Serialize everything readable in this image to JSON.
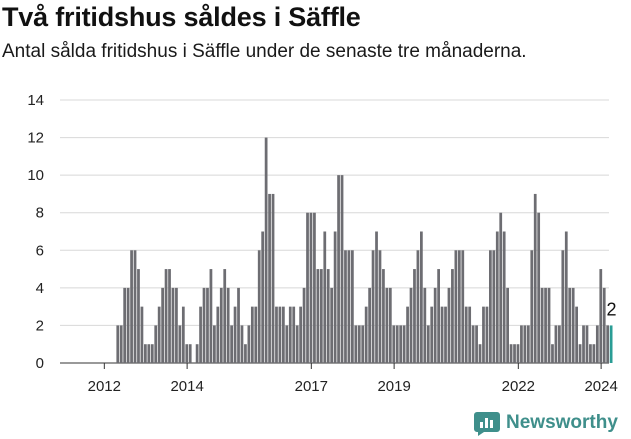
{
  "header": {
    "title": "Två fritidshus såldes i Säffle",
    "subtitle": "Antal sålda fritidshus i Säffle under de senaste tre månaderna."
  },
  "brand": {
    "name": "Newsworthy",
    "icon": "newsworthy-chart-icon"
  },
  "colors": {
    "bar": "#6d6d72",
    "highlight": "#2a9d95",
    "grid": "#d8d8d8",
    "brand": "#3f8f8b"
  },
  "chart_data": {
    "type": "bar",
    "title": "Två fritidshus såldes i Säffle",
    "subtitle": "Antal sålda fritidshus i Säffle under de senaste tre månaderna.",
    "x_start": "2011-01",
    "x_step": "month",
    "ylim": [
      0,
      14
    ],
    "y_ticks": [
      0,
      2,
      4,
      6,
      8,
      10,
      12,
      14
    ],
    "x_ticks": [
      {
        "label": "2012",
        "date": "2012-01"
      },
      {
        "label": "2014",
        "date": "2014-01"
      },
      {
        "label": "2017",
        "date": "2017-01"
      },
      {
        "label": "2019",
        "date": "2019-01"
      },
      {
        "label": "2022",
        "date": "2022-01"
      },
      {
        "label": "2024",
        "date": "2024-01"
      }
    ],
    "grid": true,
    "values": [
      0,
      0,
      0,
      0,
      0,
      0,
      0,
      0,
      0,
      0,
      0,
      0,
      0,
      0,
      0,
      0,
      2,
      2,
      4,
      4,
      6,
      6,
      5,
      3,
      1,
      1,
      1,
      2,
      3,
      4,
      5,
      5,
      4,
      4,
      2,
      3,
      1,
      1,
      0,
      1,
      3,
      4,
      4,
      5,
      2,
      3,
      4,
      5,
      4,
      2,
      3,
      4,
      2,
      1,
      2,
      3,
      3,
      6,
      7,
      12,
      9,
      9,
      3,
      3,
      3,
      2,
      3,
      3,
      2,
      3,
      4,
      8,
      8,
      8,
      5,
      5,
      7,
      5,
      4,
      7,
      10,
      10,
      6,
      6,
      6,
      2,
      2,
      2,
      3,
      4,
      6,
      7,
      6,
      5,
      4,
      4,
      2,
      2,
      2,
      2,
      3,
      4,
      5,
      6,
      7,
      4,
      2,
      3,
      4,
      5,
      3,
      3,
      4,
      5,
      6,
      6,
      6,
      3,
      3,
      2,
      2,
      1,
      3,
      3,
      6,
      6,
      7,
      8,
      7,
      4,
      1,
      1,
      1,
      2,
      2,
      2,
      6,
      9,
      8,
      4,
      4,
      4,
      1,
      2,
      2,
      6,
      7,
      4,
      4,
      3,
      1,
      2,
      2,
      1,
      1,
      2,
      5,
      4,
      2,
      2
    ],
    "highlight_last": true,
    "last_value_label": "2"
  }
}
